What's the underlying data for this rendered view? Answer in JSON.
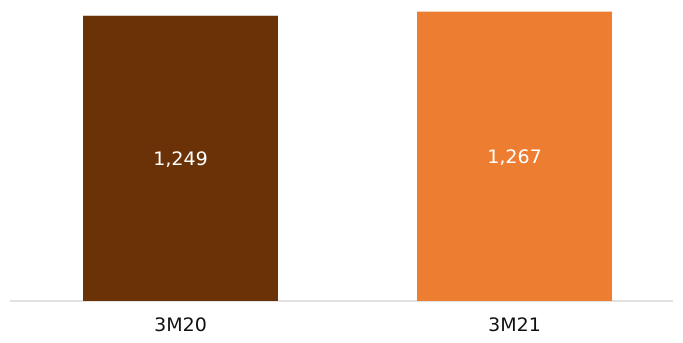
{
  "chart_data": {
    "type": "bar",
    "categories": [
      "3M20",
      "3M21"
    ],
    "values": [
      1249,
      1267
    ],
    "value_labels": [
      "1,249",
      "1,267"
    ],
    "colors": [
      "#6b3208",
      "#ed7d31"
    ],
    "axis_color": "#d9d9d9",
    "title": "",
    "xlabel": "",
    "ylabel": "",
    "grid": false,
    "legend": "none",
    "value_axis_shown": false
  }
}
